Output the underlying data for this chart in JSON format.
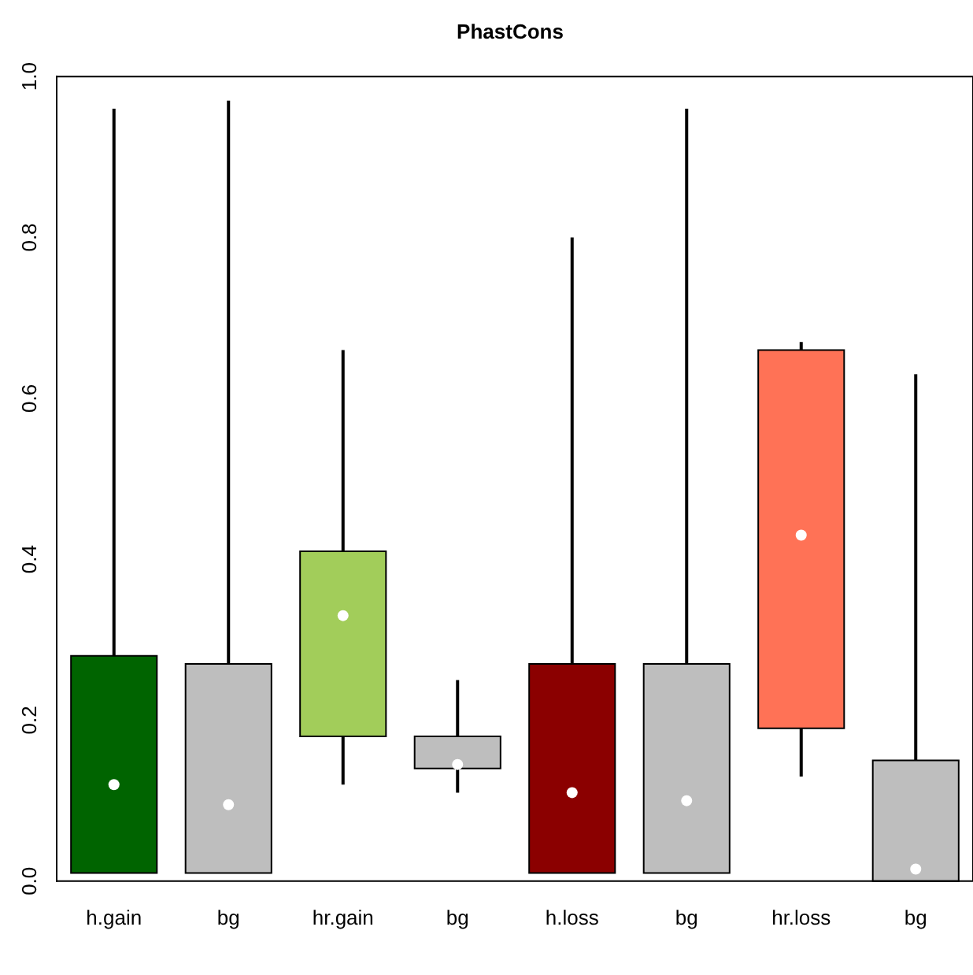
{
  "chart_data": {
    "type": "box",
    "title": "PhastCons",
    "categories": [
      "h.gain",
      "bg",
      "hr.gain",
      "bg",
      "h.loss",
      "bg",
      "hr.loss",
      "bg"
    ],
    "colors": [
      "#006400",
      "#bebebe",
      "#a2cd5a",
      "#bebebe",
      "#8b0000",
      "#bebebe",
      "#ff7256",
      "#bebebe"
    ],
    "boxes": [
      {
        "low": 0.01,
        "q1": 0.01,
        "median": 0.12,
        "q3": 0.28,
        "high": 0.96
      },
      {
        "low": 0.01,
        "q1": 0.01,
        "median": 0.095,
        "q3": 0.27,
        "high": 0.97
      },
      {
        "low": 0.12,
        "q1": 0.18,
        "median": 0.33,
        "q3": 0.41,
        "high": 0.66
      },
      {
        "low": 0.11,
        "q1": 0.14,
        "median": 0.145,
        "q3": 0.18,
        "high": 0.25
      },
      {
        "low": 0.01,
        "q1": 0.01,
        "median": 0.11,
        "q3": 0.27,
        "high": 0.8
      },
      {
        "low": 0.01,
        "q1": 0.01,
        "median": 0.1,
        "q3": 0.27,
        "high": 0.96
      },
      {
        "low": 0.13,
        "q1": 0.19,
        "median": 0.43,
        "q3": 0.66,
        "high": 0.67
      },
      {
        "low": 0.0,
        "q1": 0.0,
        "median": 0.015,
        "q3": 0.15,
        "high": 0.63
      }
    ],
    "ylim": [
      0,
      1
    ],
    "yticks": [
      {
        "value": 0,
        "label": "0.0"
      },
      0.2,
      0.4,
      0.6,
      0.8,
      {
        "value": 1,
        "label": "1.0"
      }
    ],
    "grid": false
  }
}
